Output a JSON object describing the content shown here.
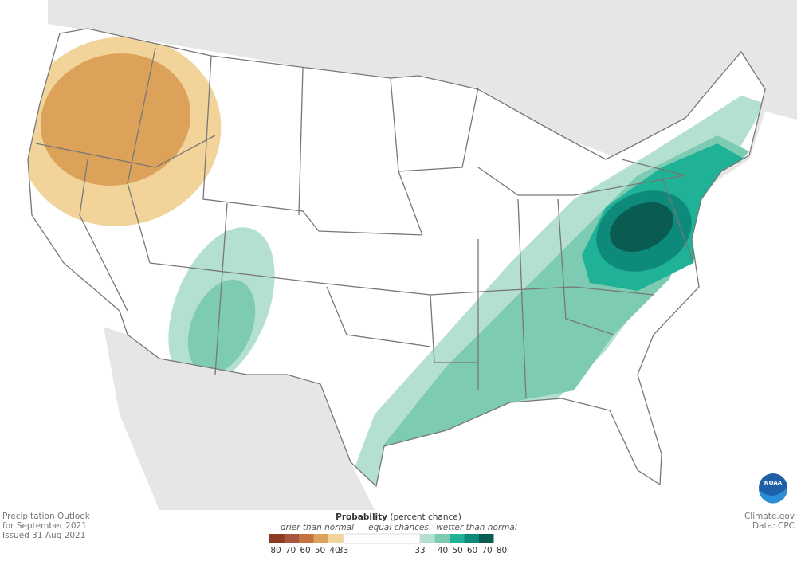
{
  "footer_left": [
    "Precipitation Outlook",
    "for September 2021",
    "Issued 31 Aug 2021"
  ],
  "footer_right": [
    "Climate.gov",
    "Data: CPC"
  ],
  "logo": "NOAA",
  "legend": {
    "title": "Probability",
    "subtitle": "(percent chance)",
    "drier_label": "drier than normal",
    "equal_label": "equal chances",
    "wetter_label": "wetter than normal",
    "drier_ticks": [
      80,
      70,
      60,
      50,
      40,
      33
    ],
    "wetter_ticks": [
      33,
      40,
      50,
      60,
      70,
      80
    ],
    "drier_colors": [
      "#8c3a22",
      "#a9543c",
      "#c47040",
      "#dca25a",
      "#f2d49a"
    ],
    "equal_color": "#ffffff",
    "wetter_colors": [
      "#b3e0d0",
      "#7dcbb2",
      "#1fb296",
      "#0e8a7a",
      "#0a5c50"
    ]
  }
}
